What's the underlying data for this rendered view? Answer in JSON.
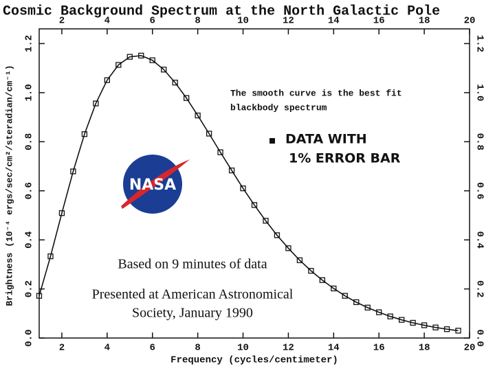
{
  "chart_data": {
    "type": "line",
    "title": "Cosmic Background Spectrum at the North Galactic Pole",
    "xlabel": "Frequency (cycles/centimeter)",
    "ylabel": "Brightness (10⁻⁴ ergs/sec/cm²/steradian/cm⁻¹)",
    "x": [
      1,
      1.5,
      2,
      2.5,
      3,
      3.5,
      4,
      4.5,
      5,
      5.5,
      6,
      6.5,
      7,
      7.5,
      8,
      8.5,
      9,
      9.5,
      10,
      10.5,
      11,
      11.5,
      12,
      12.5,
      13,
      13.5,
      14,
      14.5,
      15,
      15.5,
      16,
      16.5,
      17,
      17.5,
      18,
      18.5,
      19,
      19.5
    ],
    "series": [
      {
        "name": "DATA WITH 1% ERROR BAR",
        "color": "#111111",
        "values": [
          0.172,
          0.333,
          0.509,
          0.679,
          0.831,
          0.956,
          1.051,
          1.113,
          1.146,
          1.151,
          1.132,
          1.094,
          1.041,
          0.978,
          0.907,
          0.833,
          0.757,
          0.683,
          0.61,
          0.542,
          0.478,
          0.419,
          0.366,
          0.317,
          0.274,
          0.236,
          0.202,
          0.172,
          0.146,
          0.124,
          0.105,
          0.088,
          0.074,
          0.062,
          0.052,
          0.043,
          0.036,
          0.03
        ]
      }
    ],
    "xlim": [
      1,
      20
    ],
    "ylim": [
      0,
      1.26
    ],
    "xticks": [
      2,
      4,
      6,
      8,
      10,
      12,
      14,
      16,
      18,
      20
    ],
    "yticks": [
      {
        "value": 0,
        "label": "0.0"
      },
      0.2,
      0.4,
      0.6,
      0.8,
      {
        "value": 1,
        "label": "1.0"
      },
      1.2
    ],
    "annotations": {
      "fit_note": [
        "The smooth curve is the best fit",
        "blackbody spectrum"
      ],
      "data_note": [
        "DATA WITH",
        "1% ERROR BAR"
      ],
      "duration": "Based on 9 minutes of data",
      "presented": [
        "Presented at American Astronomical",
        "Society, January 1990"
      ],
      "logo": "NASA"
    }
  }
}
